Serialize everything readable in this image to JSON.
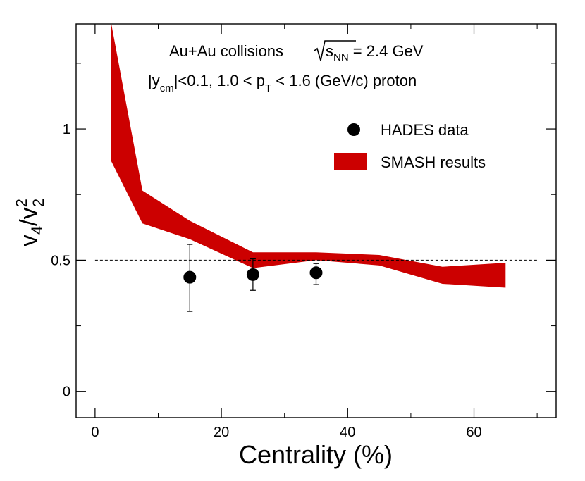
{
  "chart_data": {
    "type": "band-with-points",
    "xlabel": "Centrality (%)",
    "ylabel": {
      "base": "v",
      "sub1": "4",
      "sep": "/v",
      "sup2": "2",
      "sub2": "2"
    },
    "xlim": [
      -3,
      73
    ],
    "ylim": [
      -0.1,
      1.4
    ],
    "xticks": [
      0,
      20,
      40,
      60
    ],
    "yticks": [
      0,
      0.5,
      1
    ],
    "ytick_labels": [
      "0",
      "0.5",
      "1"
    ],
    "reference_line": {
      "y": 0.5,
      "style": "dashed",
      "x_range": [
        0,
        70
      ]
    },
    "annotations": {
      "line1_prefix": "Au+Au collisions ",
      "line1_sqrt_s": "s",
      "line1_sqrt_sub": "NN",
      "line1_suffix": " = 2.4 GeV",
      "line2_a": "|y",
      "line2_sub_cm": "cm",
      "line2_b": "|<0.1, 1.0 < p",
      "line2_sub_t": "T",
      "line2_c": " < 1.6 (GeV/c)   proton"
    },
    "series": [
      {
        "name": "HADES data",
        "kind": "points",
        "color": "#000000",
        "points": [
          {
            "x": 15,
            "y": 0.435,
            "err_low": 0.13,
            "err_high": 0.125
          },
          {
            "x": 25,
            "y": 0.445,
            "err_low": 0.06,
            "err_high": 0.06
          },
          {
            "x": 35,
            "y": 0.452,
            "err_low": 0.045,
            "err_high": 0.035
          }
        ]
      },
      {
        "name": "SMASH results",
        "kind": "band",
        "color": "#cc0000",
        "x": [
          2.5,
          7.5,
          15,
          25,
          35,
          45,
          55,
          65
        ],
        "lower": [
          0.88,
          0.64,
          0.58,
          0.47,
          0.5,
          0.48,
          0.41,
          0.395
        ],
        "upper": [
          1.41,
          0.765,
          0.65,
          0.53,
          0.53,
          0.52,
          0.475,
          0.49
        ]
      }
    ],
    "legend": {
      "position": "top-right",
      "entries": [
        "HADES data",
        "SMASH results"
      ]
    }
  }
}
